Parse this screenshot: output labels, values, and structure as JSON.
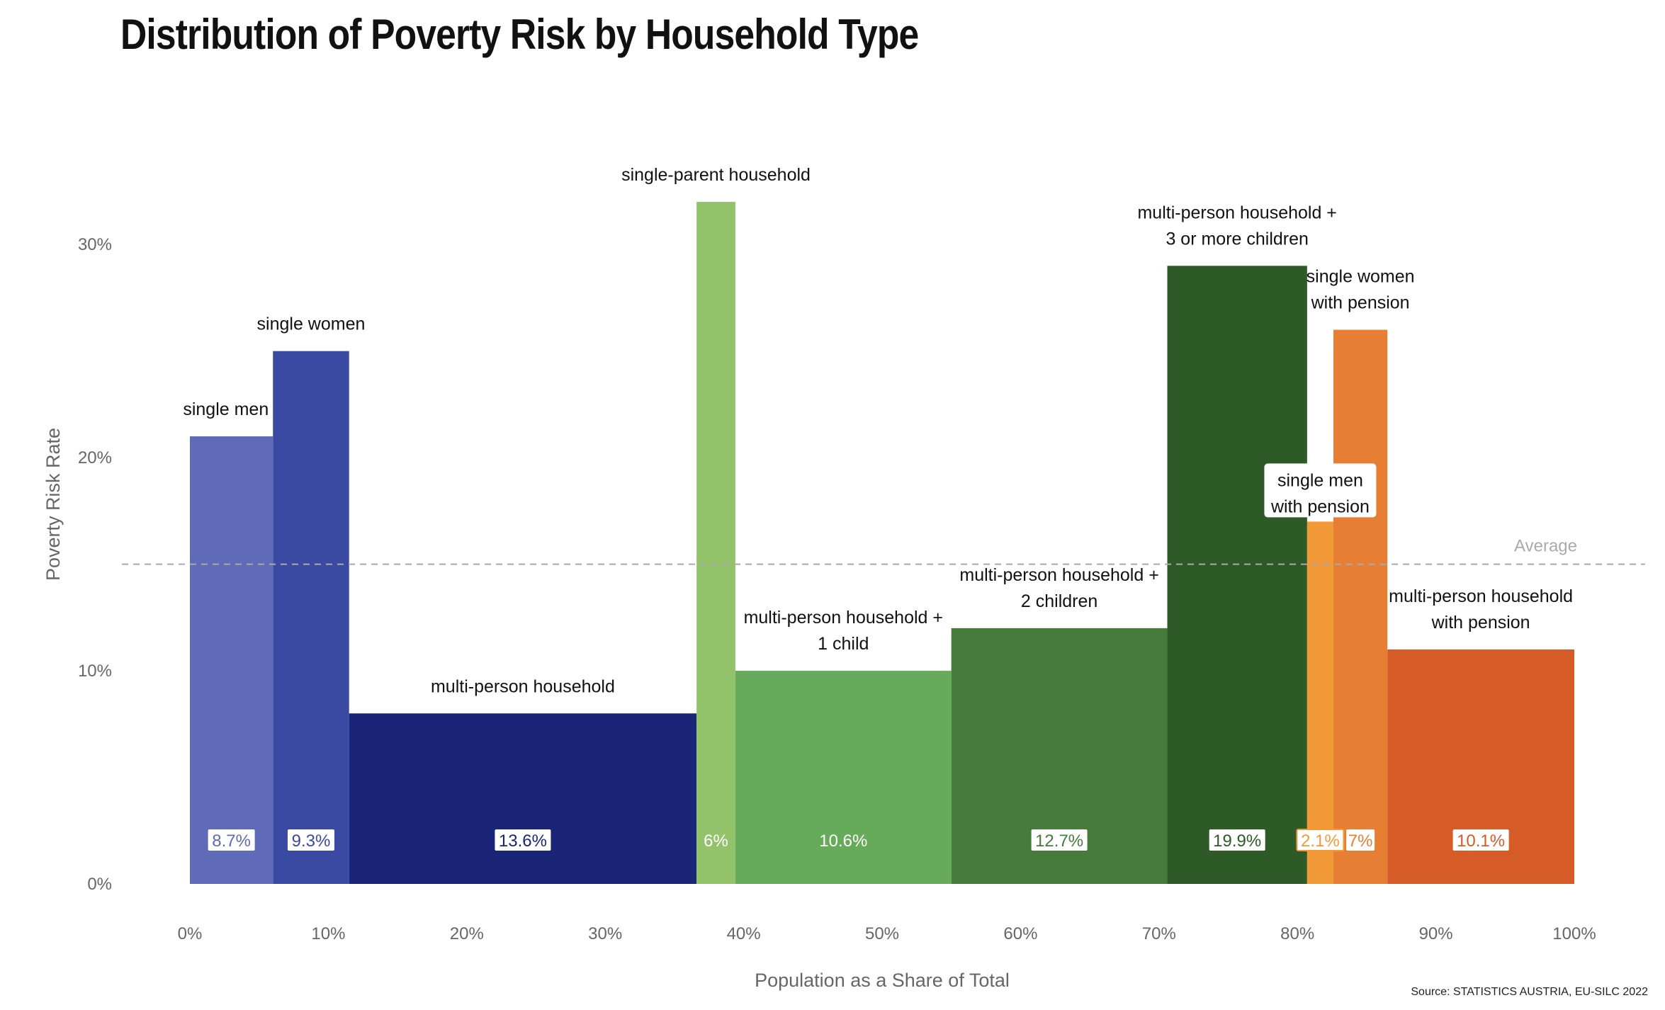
{
  "title": "Distribution of Poverty Risk by Household Type",
  "source": "Source: STATISTICS AUSTRIA, EU-SILC 2022",
  "chart_data": {
    "type": "bar",
    "subtype": "variable-width (marimekko)",
    "title": "Distribution of Poverty Risk by Household Type",
    "xlabel": "Population as a Share of Total",
    "ylabel": "Poverty Risk Rate",
    "xlim": [
      0,
      100
    ],
    "ylim": [
      0,
      33
    ],
    "x_ticks": [
      "0%",
      "10%",
      "20%",
      "30%",
      "40%",
      "50%",
      "60%",
      "70%",
      "80%",
      "90%",
      "100%"
    ],
    "y_ticks": [
      "0%",
      "10%",
      "20%",
      "30%"
    ],
    "grid": false,
    "average": {
      "label": "Average",
      "value": 15
    },
    "bars": [
      {
        "category": [
          "single men"
        ],
        "share": 6,
        "share_label": "8.7%",
        "risk": 21,
        "color": "#5f6bb8",
        "label_fill": "#ffffff",
        "label_color": "#5f6bb8",
        "label_side": "left"
      },
      {
        "category": [
          "single women"
        ],
        "share": 5.5,
        "share_label": "9.3%",
        "risk": 25,
        "color": "#3a4aa3",
        "label_fill": "#ffffff",
        "label_color": "#3a4aa3",
        "label_side": "center"
      },
      {
        "category": [
          "multi-person household"
        ],
        "share": 25.1,
        "share_label": "13.6%",
        "risk": 8,
        "color": "#1b2577",
        "label_fill": "#ffffff",
        "label_color": "#1b2577",
        "label_side": "center"
      },
      {
        "category": [
          "single-parent household"
        ],
        "share": 2.8,
        "share_label": "6%",
        "risk": 32,
        "color": "#92c36b",
        "label_fill": "#92c36b",
        "label_color": "#ffffff",
        "label_side": "center"
      },
      {
        "category": [
          "multi-person household +",
          "1 child"
        ],
        "share": 15.6,
        "share_label": "10.6%",
        "risk": 10,
        "color": "#66ab5a",
        "label_fill": "#66ab5a",
        "label_color": "#ffffff",
        "label_side": "center"
      },
      {
        "category": [
          "multi-person household +",
          "2 children"
        ],
        "share": 15.6,
        "share_label": "12.7%",
        "risk": 12,
        "color": "#467b3c",
        "label_fill": "#ffffff",
        "label_color": "#467b3c",
        "label_side": "center"
      },
      {
        "category": [
          "multi-person household +",
          "3 or more children"
        ],
        "share": 10.1,
        "share_label": "19.9%",
        "risk": 29,
        "color": "#2e5a27",
        "label_fill": "#ffffff",
        "label_color": "#2e5a27",
        "label_side": "center"
      },
      {
        "category": [
          "single men",
          "with pension"
        ],
        "share": 1.9,
        "share_label": "2.1%",
        "risk": 17,
        "color": "#f29a38",
        "label_fill": "#ffffff",
        "label_color": "#f29a38",
        "label_side": "boxed"
      },
      {
        "category": [
          "single women",
          "with pension"
        ],
        "share": 3.9,
        "share_label": "7%",
        "risk": 26,
        "color": "#e67f33",
        "label_fill": "#ffffff",
        "label_color": "#e67f33",
        "label_side": "center"
      },
      {
        "category": [
          "multi-person household",
          "with pension"
        ],
        "share": 13.5,
        "share_label": "10.1%",
        "risk": 11,
        "color": "#d55c27",
        "label_fill": "#ffffff",
        "label_color": "#d55c27",
        "label_side": "center"
      }
    ]
  }
}
